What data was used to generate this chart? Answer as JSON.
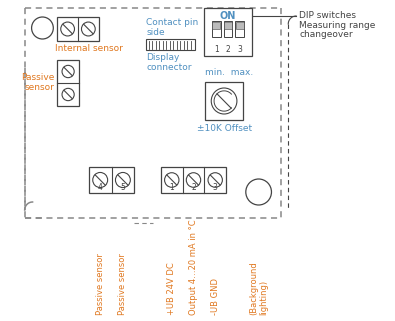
{
  "bg_color": "#ffffff",
  "border_color": "#888888",
  "orange_color": "#e07820",
  "blue_color": "#5090c0",
  "dark_color": "#444444",
  "dip_label_line1": "DIP switches",
  "dip_label_line2": "Measuring range",
  "dip_label_line3": "changeover",
  "internal_sensor_label": "Internal sensor",
  "passive_sensor_label_line1": "Passive",
  "passive_sensor_label_line2": "sensor",
  "contact_pin_label": "Contact pin\nside",
  "display_connector_label": "Display\nconnector",
  "min_max_label": "min.  max.",
  "offset_label": "±10K Offset",
  "label_passive1": "Passive sensor",
  "label_passive2": "Passive sensor",
  "label_t1": "+UB 24V DC",
  "label_t2": "Output 4…20 mA in °C",
  "label_t3": "-UB GND",
  "label_t4": "(Background\nlighting)",
  "num1": "1",
  "num2": "2",
  "num3": "3",
  "num4": "4",
  "num5": "5",
  "ON_label": "ON",
  "sw1": "1",
  "sw2": "2",
  "sw3": "3"
}
